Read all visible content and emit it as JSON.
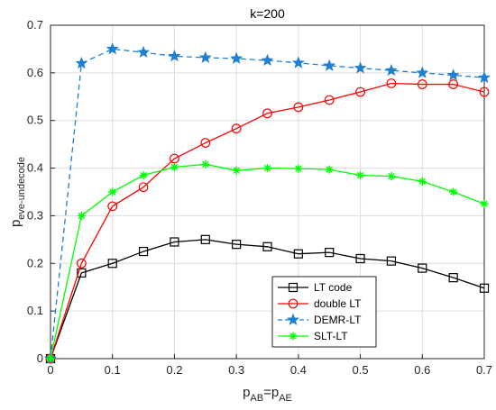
{
  "chart_data": {
    "type": "line",
    "title": "k=200",
    "xlabel": {
      "main": "p",
      "sub1": "AB",
      "eq": "=p",
      "sub2": "AE"
    },
    "ylabel": {
      "main": "p",
      "sub": "eve-undecode"
    },
    "xlim": [
      0,
      0.7
    ],
    "ylim": [
      0,
      0.7
    ],
    "xticks": [
      "0",
      "0.1",
      "0.2",
      "0.3",
      "0.4",
      "0.5",
      "0.6",
      "0.7"
    ],
    "yticks": [
      "0",
      "0.1",
      "0.2",
      "0.3",
      "0.4",
      "0.5",
      "0.6",
      "0.7"
    ],
    "x": [
      0,
      0.05,
      0.1,
      0.15,
      0.2,
      0.25,
      0.3,
      0.35,
      0.4,
      0.45,
      0.5,
      0.55,
      0.6,
      0.65,
      0.7
    ],
    "grid": true,
    "legend_position": "bottom-right",
    "series": [
      {
        "name": "LT code",
        "color": "#000000",
        "marker": "square",
        "dash": "solid",
        "values": [
          0.0,
          0.18,
          0.2,
          0.225,
          0.245,
          0.25,
          0.24,
          0.235,
          0.22,
          0.223,
          0.21,
          0.205,
          0.19,
          0.17,
          0.148
        ]
      },
      {
        "name": "double LT",
        "color": "#ff0000",
        "marker": "circle",
        "dash": "solid",
        "values": [
          0.0,
          0.2,
          0.32,
          0.36,
          0.42,
          0.453,
          0.483,
          0.515,
          0.528,
          0.543,
          0.56,
          0.578,
          0.576,
          0.576,
          0.56
        ]
      },
      {
        "name": "DEMR-LT",
        "color": "#1f7fd0",
        "marker": "star",
        "dash": "dashed",
        "values": [
          0.0,
          0.62,
          0.65,
          0.643,
          0.635,
          0.632,
          0.63,
          0.626,
          0.621,
          0.615,
          0.61,
          0.605,
          0.6,
          0.595,
          0.59
        ]
      },
      {
        "name": "SLT-LT",
        "color": "#00ff00",
        "marker": "asterisk",
        "dash": "solid",
        "values": [
          0.0,
          0.3,
          0.35,
          0.385,
          0.402,
          0.408,
          0.395,
          0.4,
          0.399,
          0.397,
          0.385,
          0.383,
          0.372,
          0.35,
          0.325
        ]
      }
    ]
  }
}
